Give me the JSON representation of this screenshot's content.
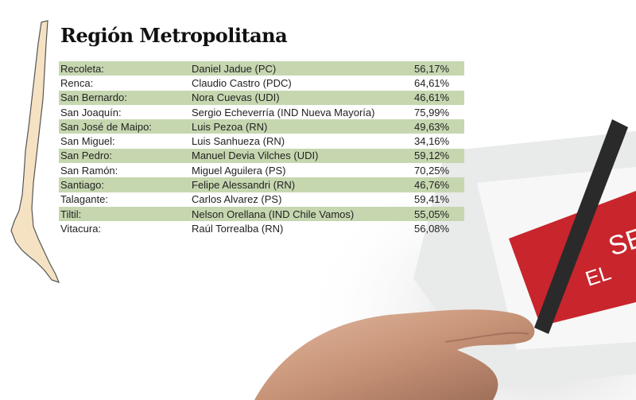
{
  "title": "Región Metropolitana",
  "colors": {
    "row_shade": "#c6d7b0",
    "map_fill": "#f5e2c3",
    "ballot_red": "#c8252c"
  },
  "ballot_text": [
    "SER",
    "EL"
  ],
  "rows": [
    {
      "commune": "Recoleta:",
      "mayor": "Daniel Jadue (PC)",
      "percent": "56,17%"
    },
    {
      "commune": "Renca:",
      "mayor": "Claudio Castro (PDC)",
      "percent": "64,61%"
    },
    {
      "commune": "San Bernardo:",
      "mayor": "Nora Cuevas (UDI)",
      "percent": "46,61%"
    },
    {
      "commune": "San Joaquín:",
      "mayor": "Sergio Echeverría (IND Nueva Mayoría)",
      "percent": "75,99%"
    },
    {
      "commune": "San José de Maipo:",
      "mayor": "Luis Pezoa (RN)",
      "percent": "49,63%"
    },
    {
      "commune": "San Miguel:",
      "mayor": "Luis Sanhueza (RN)",
      "percent": "34,16%"
    },
    {
      "commune": "San Pedro:",
      "mayor": "Manuel Devia Vilches (UDI)",
      "percent": "59,12%"
    },
    {
      "commune": "San Ramón:",
      "mayor": "Miguel Aguilera (PS)",
      "percent": "70,25%"
    },
    {
      "commune": "Santiago:",
      "mayor": " Felipe Alessandri (RN)",
      "percent": "46,76%"
    },
    {
      "commune": "Talagante:",
      "mayor": "Carlos Alvarez (PS)",
      "percent": "59,41%"
    },
    {
      "commune": "Tiltil:",
      "mayor": "Nelson Orellana (IND Chile Vamos)",
      "percent": "55,05%"
    },
    {
      "commune": "Vitacura:",
      "mayor": "Raúl Torrealba (RN)",
      "percent": "56,08%"
    }
  ]
}
